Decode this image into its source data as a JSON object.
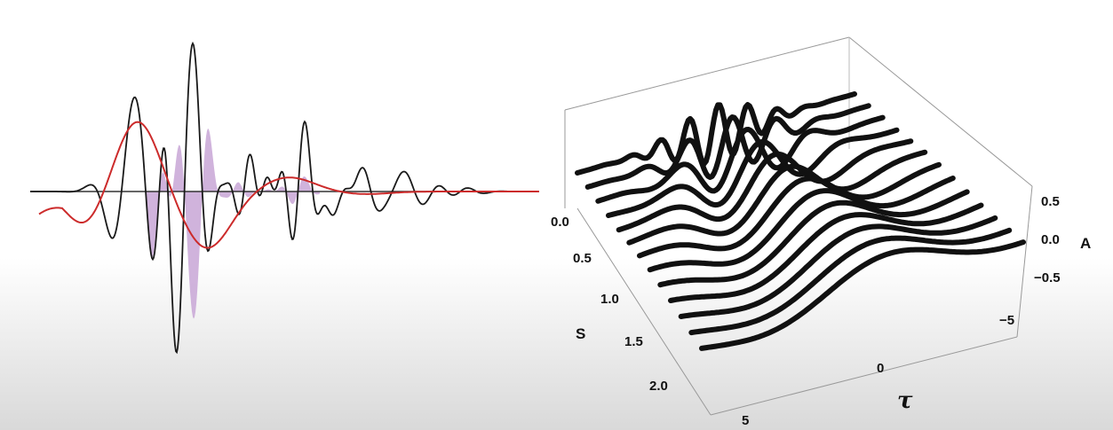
{
  "chart_data": [
    {
      "type": "line",
      "panel": "wavelet-transform-illustration",
      "title": "",
      "xlabel": "",
      "ylabel": "",
      "axes_visible": false,
      "grid": false,
      "series": [
        {
          "role": "signal",
          "color": "#1a1a1a",
          "x": [
            0,
            0.1,
            0.2,
            0.3,
            0.35,
            0.4,
            0.45,
            0.5,
            0.55,
            0.6,
            0.65,
            0.7,
            0.75,
            0.8,
            0.85,
            0.9,
            0.95,
            1.0
          ],
          "y": [
            0,
            0.02,
            -0.05,
            0.3,
            -0.9,
            0.7,
            -0.4,
            0.35,
            -0.25,
            0.6,
            -0.3,
            0.5,
            -0.15,
            0.1,
            -0.08,
            0.04,
            -0.02,
            0
          ]
        },
        {
          "role": "wavelet",
          "color": "#cc2b2b",
          "x": [
            0,
            0.05,
            0.1,
            0.15,
            0.2,
            0.3,
            0.4,
            0.5,
            0.6,
            0.7,
            0.8,
            1.0
          ],
          "y": [
            -0.2,
            0.1,
            0.85,
            0.6,
            -0.1,
            -0.45,
            -0.1,
            0.12,
            0.0,
            -0.02,
            0.0,
            0.0
          ]
        },
        {
          "role": "product",
          "color": "#c8a6d6",
          "style": "filled-area"
        }
      ]
    },
    {
      "type": "line",
      "panel": "wavelet-3d-surface",
      "title": "",
      "axes": {
        "s": {
          "label": "S",
          "ticks": [
            "0.0",
            "0.5",
            "1.0",
            "1.5",
            "2.0"
          ],
          "range": [
            0,
            2.2
          ]
        },
        "tau": {
          "label": "τ",
          "ticks": [
            "5",
            "0",
            "−5"
          ],
          "range": [
            -6,
            6
          ]
        },
        "a": {
          "label": "A",
          "ticks": [
            "0.5",
            "0.0",
            "−0.5"
          ],
          "range": [
            -0.7,
            0.7
          ]
        }
      },
      "series_count": 13,
      "s_values": [
        0.0,
        0.15,
        0.3,
        0.45,
        0.6,
        0.75,
        0.9,
        1.05,
        1.2,
        1.35,
        1.5,
        1.65,
        1.8
      ],
      "color": "#111111"
    }
  ]
}
